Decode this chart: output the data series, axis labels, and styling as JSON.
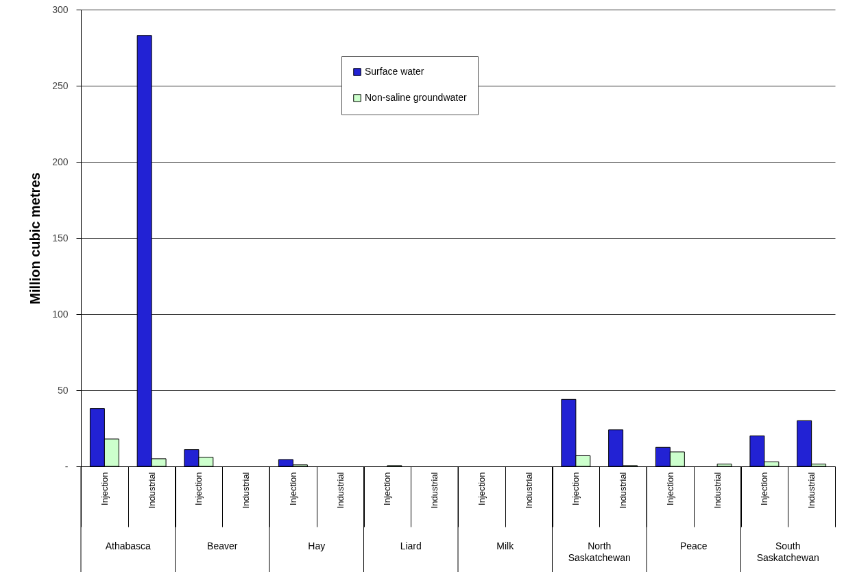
{
  "chart_data": {
    "type": "bar",
    "ylabel": "Million cubic metres",
    "categories": [
      "Injection",
      "Industrial",
      "Injection",
      "Industrial",
      "Injection",
      "Industrial",
      "Injection",
      "Industrial",
      "Injection",
      "Industrial",
      "Injection",
      "Industrial",
      "Injection",
      "Industrial",
      "Injection",
      "Industrial"
    ],
    "series": [
      {
        "name": "Surface water",
        "color": "#2222d4",
        "values": [
          38,
          283,
          11,
          0,
          4.5,
          0,
          0,
          0,
          0,
          0,
          44,
          24,
          12.5,
          0,
          20,
          30
        ]
      },
      {
        "name": "Non-saline groundwater",
        "color": "#ccffcc",
        "values": [
          18,
          5,
          6,
          0,
          1,
          0,
          0.5,
          0,
          0,
          0,
          7,
          0.5,
          9.5,
          1.5,
          3,
          1.5
        ]
      }
    ],
    "annotations": [
      "Athabasca",
      "Beaver",
      "Hay",
      "Liard",
      "Milk",
      "North Saskatchewan",
      "Peace",
      "South Saskatchewan"
    ],
    "ylim": [
      0,
      300
    ],
    "yticks": [
      {
        "value": 0,
        "label": "-"
      },
      50,
      100,
      150,
      200,
      250,
      300
    ],
    "grid": "y",
    "legend": "top"
  }
}
